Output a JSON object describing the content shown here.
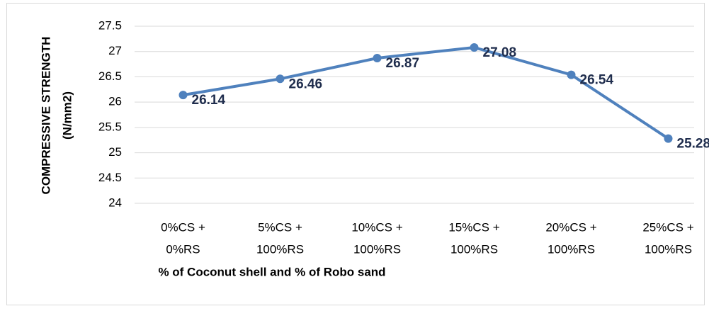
{
  "chart_data": {
    "type": "line",
    "categories": [
      [
        "0%CS +",
        "0%RS"
      ],
      [
        "5%CS +",
        "100%RS"
      ],
      [
        "10%CS +",
        "100%RS"
      ],
      [
        "15%CS +",
        "100%RS"
      ],
      [
        "20%CS +",
        "100%RS"
      ],
      [
        "25%CS +",
        "100%RS"
      ]
    ],
    "values": [
      26.14,
      26.46,
      26.87,
      27.08,
      26.54,
      25.28
    ],
    "color": "#4f81bd",
    "ylabel": [
      "COMPRESSIVE STRENGTH",
      "(N/mm2)"
    ],
    "xlabel": "% of Coconut shell and % of Robo sand",
    "ylim": [
      24,
      27.5
    ],
    "yticks": [
      24,
      24.5,
      25,
      25.5,
      26,
      26.5,
      27,
      27.5
    ],
    "grid": true
  }
}
